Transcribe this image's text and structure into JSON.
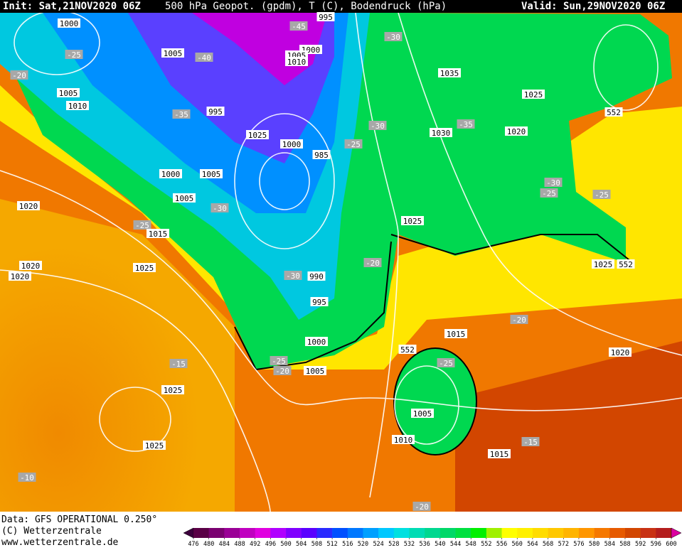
{
  "header": {
    "init": "Init: Sat,21NOV2020 06Z",
    "title": "500 hPa Geopot. (gpdm), T (C), Bodendruck (hPa)",
    "valid": "Valid: Sun,29NOV2020 06Z"
  },
  "map_labels": [
    "1000",
    "995",
    "-45",
    "1005",
    "-40",
    "1000",
    "1005",
    "1010",
    "-30",
    "-25",
    "-20",
    "1035",
    "1005",
    "1010",
    "1025",
    "-35",
    "995",
    "-30",
    "1030",
    "-35",
    "1020",
    "552",
    "1025",
    "-25",
    "1000",
    "985",
    "1000",
    "1005",
    "-30",
    "-25",
    "-25",
    "1005",
    "-30",
    "1020",
    "1025",
    "-25",
    "1015",
    "-20",
    "1025",
    "552",
    "1020",
    "1020",
    "1025",
    "-30",
    "990",
    "995",
    "-20",
    "1015",
    "1000",
    "1020",
    "552",
    "-25",
    "-25",
    "-15",
    "-20",
    "1005",
    "1025",
    "1005",
    "1010",
    "-15",
    "1025",
    "1015",
    "-10",
    "-20"
  ],
  "footer": {
    "data": "Data: GFS OPERATIONAL 0.250°",
    "copyright": "(C) Wetterzentrale",
    "url": "www.wetterzentrale.de"
  },
  "colorbar": {
    "ticks": [
      476,
      480,
      484,
      488,
      492,
      496,
      500,
      504,
      508,
      512,
      516,
      520,
      524,
      528,
      532,
      536,
      540,
      544,
      548,
      552,
      556,
      560,
      564,
      568,
      572,
      576,
      580,
      584,
      588,
      592,
      596,
      600
    ],
    "colors": [
      "#3c003c",
      "#5a0046",
      "#7a0070",
      "#9a0096",
      "#c000c0",
      "#e000e0",
      "#b000ff",
      "#8000ff",
      "#5a00ff",
      "#2a2aff",
      "#0050ff",
      "#0078ff",
      "#00a0ff",
      "#00c8ff",
      "#00e0e0",
      "#00dcb4",
      "#00d890",
      "#00d868",
      "#00e040",
      "#00f000",
      "#a0f000",
      "#ffff00",
      "#fff000",
      "#ffdc00",
      "#ffc800",
      "#ffb400",
      "#ff9600",
      "#f57800",
      "#e65a00",
      "#d24600",
      "#c83214",
      "#b41e1e",
      "#dc00a0"
    ]
  }
}
